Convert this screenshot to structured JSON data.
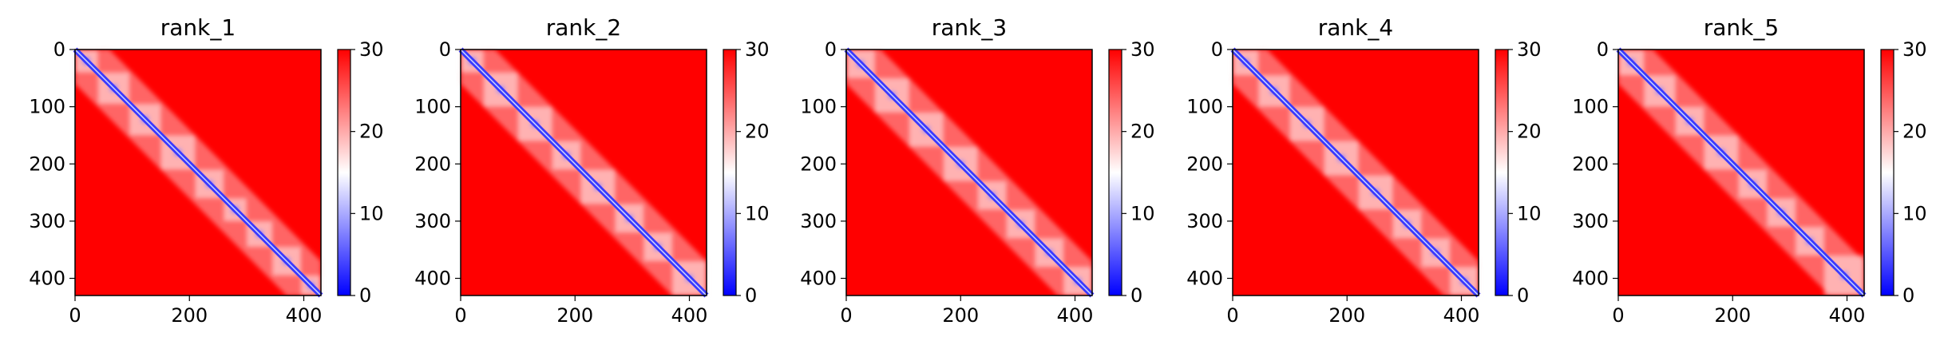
{
  "chart_data": [
    {
      "type": "heatmap",
      "title": "rank_1",
      "xlim": [
        0,
        430
      ],
      "ylim": [
        430,
        0
      ],
      "xticks": [
        0,
        200,
        400
      ],
      "yticks": [
        0,
        100,
        200,
        300,
        400
      ],
      "colorbar": {
        "min": 0,
        "max": 30,
        "ticks": [
          0,
          10,
          20,
          30
        ],
        "colors": [
          "#0000ff",
          "#ffffff",
          "#ff0000"
        ]
      },
      "domain_blocks": [
        [
          0,
          40
        ],
        [
          40,
          95
        ],
        [
          95,
          150
        ],
        [
          150,
          210
        ],
        [
          210,
          260
        ],
        [
          260,
          300
        ],
        [
          300,
          345
        ],
        [
          345,
          395
        ],
        [
          395,
          430
        ]
      ]
    },
    {
      "type": "heatmap",
      "title": "rank_2",
      "xlim": [
        0,
        430
      ],
      "ylim": [
        430,
        0
      ],
      "xticks": [
        0,
        200,
        400
      ],
      "yticks": [
        0,
        100,
        200,
        300,
        400
      ],
      "colorbar": {
        "min": 0,
        "max": 30,
        "ticks": [
          0,
          10,
          20,
          30
        ],
        "colors": [
          "#0000ff",
          "#ffffff",
          "#ff0000"
        ]
      },
      "domain_blocks": [
        [
          0,
          40
        ],
        [
          40,
          100
        ],
        [
          100,
          160
        ],
        [
          160,
          210
        ],
        [
          210,
          270
        ],
        [
          270,
          320
        ],
        [
          320,
          370
        ],
        [
          370,
          430
        ]
      ]
    },
    {
      "type": "heatmap",
      "title": "rank_3",
      "xlim": [
        0,
        430
      ],
      "ylim": [
        430,
        0
      ],
      "xticks": [
        0,
        200,
        400
      ],
      "yticks": [
        0,
        100,
        200,
        300,
        400
      ],
      "colorbar": {
        "min": 0,
        "max": 30,
        "ticks": [
          0,
          10,
          20,
          30
        ],
        "colors": [
          "#0000ff",
          "#ffffff",
          "#ff0000"
        ]
      },
      "domain_blocks": [
        [
          0,
          50
        ],
        [
          50,
          110
        ],
        [
          110,
          170
        ],
        [
          170,
          230
        ],
        [
          230,
          280
        ],
        [
          280,
          330
        ],
        [
          330,
          380
        ],
        [
          380,
          430
        ]
      ]
    },
    {
      "type": "heatmap",
      "title": "rank_4",
      "xlim": [
        0,
        430
      ],
      "ylim": [
        430,
        0
      ],
      "xticks": [
        0,
        200,
        400
      ],
      "yticks": [
        0,
        100,
        200,
        300,
        400
      ],
      "colorbar": {
        "min": 0,
        "max": 30,
        "ticks": [
          0,
          10,
          20,
          30
        ],
        "colors": [
          "#0000ff",
          "#ffffff",
          "#ff0000"
        ]
      },
      "domain_blocks": [
        [
          0,
          45
        ],
        [
          45,
          100
        ],
        [
          100,
          160
        ],
        [
          160,
          220
        ],
        [
          220,
          280
        ],
        [
          280,
          330
        ],
        [
          330,
          380
        ],
        [
          380,
          430
        ]
      ]
    },
    {
      "type": "heatmap",
      "title": "rank_5",
      "xlim": [
        0,
        430
      ],
      "ylim": [
        430,
        0
      ],
      "xticks": [
        0,
        200,
        400
      ],
      "yticks": [
        0,
        100,
        200,
        300,
        400
      ],
      "colorbar": {
        "min": 0,
        "max": 30,
        "ticks": [
          0,
          10,
          20,
          30
        ],
        "colors": [
          "#0000ff",
          "#ffffff",
          "#ff0000"
        ]
      },
      "domain_blocks": [
        [
          0,
          45
        ],
        [
          45,
          100
        ],
        [
          100,
          150
        ],
        [
          150,
          210
        ],
        [
          210,
          260
        ],
        [
          260,
          310
        ],
        [
          310,
          360
        ],
        [
          360,
          430
        ]
      ]
    }
  ]
}
